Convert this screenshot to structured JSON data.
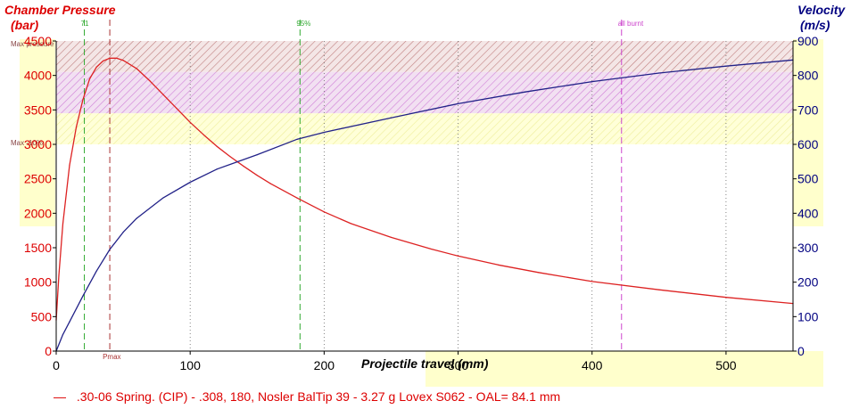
{
  "chart_data": {
    "type": "line",
    "title": "",
    "xlabel": "Projectile travel (mm)",
    "xlim": [
      0,
      550
    ],
    "x_ticks": [
      0,
      100,
      200,
      300,
      400,
      500
    ],
    "y_left": {
      "label_line1": "Chamber Pressure",
      "label_line2": "(bar)",
      "lim": [
        0,
        4500
      ],
      "ticks": [
        0,
        500,
        1000,
        1500,
        2000,
        2500,
        3000,
        3500,
        4000,
        4500
      ]
    },
    "y_right": {
      "label_line1": "Velocity",
      "label_line2": "(m/s)",
      "lim": [
        0,
        900
      ],
      "ticks": [
        0,
        100,
        200,
        300,
        400,
        500,
        600,
        700,
        800,
        900
      ]
    },
    "pressure_bands": [
      {
        "name": "Max pressure",
        "label": "Max pressure",
        "from": 4050,
        "to": 4500
      },
      {
        "name": "band-magenta",
        "label": "",
        "from": 3450,
        "to": 4050
      },
      {
        "name": "Max -10%",
        "label": "Max -10%",
        "from": 3000,
        "to": 3450
      }
    ],
    "markers": [
      {
        "name": "71",
        "label": "71",
        "x": 21,
        "color": "#33aa33"
      },
      {
        "name": "Pmax",
        "label": "Pmax",
        "x": 40,
        "color": "#aa3333"
      },
      {
        "name": "95%",
        "label": "95%",
        "x": 182,
        "color": "#33aa33"
      },
      {
        "name": "all burnt",
        "label": "all burnt",
        "x": 422,
        "color": "#cc44cc"
      }
    ],
    "series": [
      {
        "name": "Chamber Pressure",
        "axis": "left",
        "color": "#dd2222",
        "x": [
          0,
          2,
          5,
          10,
          15,
          20,
          25,
          30,
          35,
          40,
          45,
          50,
          60,
          70,
          80,
          90,
          100,
          110,
          120,
          130,
          140,
          150,
          160,
          180,
          200,
          220,
          250,
          280,
          300,
          330,
          360,
          400,
          450,
          500,
          550
        ],
        "values": [
          450,
          1100,
          1850,
          2700,
          3250,
          3650,
          3950,
          4120,
          4210,
          4250,
          4250,
          4220,
          4100,
          3920,
          3720,
          3520,
          3320,
          3140,
          2970,
          2820,
          2680,
          2550,
          2430,
          2220,
          2020,
          1850,
          1650,
          1480,
          1380,
          1250,
          1140,
          1010,
          890,
          780,
          690
        ]
      },
      {
        "name": "Velocity",
        "axis": "right",
        "color": "#222288",
        "x": [
          0,
          5,
          10,
          20,
          30,
          40,
          50,
          60,
          80,
          100,
          120,
          150,
          180,
          200,
          250,
          300,
          350,
          400,
          450,
          500,
          550
        ],
        "values": [
          0,
          48,
          85,
          160,
          232,
          295,
          345,
          385,
          445,
          490,
          528,
          570,
          615,
          635,
          677,
          718,
          752,
          782,
          807,
          827,
          845
        ]
      }
    ],
    "legend": ".30-06 Spring.  (CIP) - .308, 180, Nosler BalTip 39 - 3.27 g Lovex S062 - OAL= 84.1 mm",
    "legend_marker": "—"
  }
}
